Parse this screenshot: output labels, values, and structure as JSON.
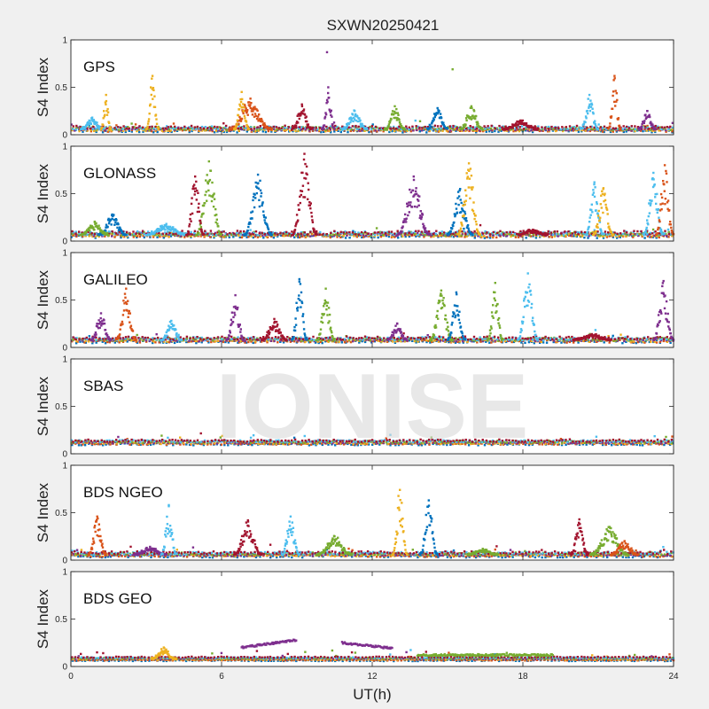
{
  "chart_data": {
    "type": "scatter",
    "title": "SXWN20250421",
    "xlabel": "UT(h)",
    "ylabel": "S4 Index",
    "xlim": [
      0,
      24
    ],
    "ylim": [
      0,
      1
    ],
    "xticks": [
      0,
      6,
      12,
      18,
      24
    ],
    "yticks": [
      0,
      0.5,
      1
    ],
    "grid": false,
    "watermark": "IONISE",
    "colors": [
      "#0072BD",
      "#D95319",
      "#EDB120",
      "#7E2F8E",
      "#77AC30",
      "#4DBEEE",
      "#A2142F"
    ],
    "panels": [
      {
        "name": "GPS",
        "baseline": 0.06,
        "noise": 0.035,
        "bumps": [
          {
            "color": 5,
            "x": [
              0.4,
              1.3
            ],
            "peak": 0.18
          },
          {
            "color": 2,
            "x": [
              1.2,
              1.6
            ],
            "peak": 0.42
          },
          {
            "color": 2,
            "x": [
              3.0,
              3.5
            ],
            "peak": 0.62
          },
          {
            "color": 1,
            "x": [
              6.3,
              8.0
            ],
            "peak": 0.38
          },
          {
            "color": 2,
            "x": [
              6.5,
              7.1
            ],
            "peak": 0.45
          },
          {
            "color": 6,
            "x": [
              8.8,
              9.6
            ],
            "peak": 0.32
          },
          {
            "color": 3,
            "x": [
              10.0,
              10.5
            ],
            "peak": 0.5
          },
          {
            "color": 5,
            "x": [
              10.8,
              11.8
            ],
            "peak": 0.25
          },
          {
            "color": 4,
            "x": [
              12.5,
              13.3
            ],
            "peak": 0.3
          },
          {
            "color": 0,
            "x": [
              14.2,
              15.0
            ],
            "peak": 0.28
          },
          {
            "color": 4,
            "x": [
              15.5,
              16.4
            ],
            "peak": 0.3
          },
          {
            "color": 6,
            "x": [
              17.2,
              18.6
            ],
            "peak": 0.15
          },
          {
            "color": 5,
            "x": [
              20.3,
              21.0
            ],
            "peak": 0.42
          },
          {
            "color": 1,
            "x": [
              21.4,
              21.9
            ],
            "peak": 0.62
          },
          {
            "color": 3,
            "x": [
              22.6,
              23.3
            ],
            "peak": 0.25
          }
        ],
        "outliers": [
          {
            "x": 10.2,
            "y": 0.87,
            "color": 3
          },
          {
            "x": 15.2,
            "y": 0.69,
            "color": 4
          }
        ]
      },
      {
        "name": "GLONASS",
        "baseline": 0.07,
        "noise": 0.04,
        "bumps": [
          {
            "color": 0,
            "x": [
              1.1,
              2.2
            ],
            "peak": 0.28
          },
          {
            "color": 4,
            "x": [
              0.4,
              1.5
            ],
            "peak": 0.2
          },
          {
            "color": 5,
            "x": [
              3.0,
              4.6
            ],
            "peak": 0.18
          },
          {
            "color": 4,
            "x": [
              5.0,
              6.0
            ],
            "peak": 0.84
          },
          {
            "color": 6,
            "x": [
              4.6,
              5.3
            ],
            "peak": 0.68
          },
          {
            "color": 0,
            "x": [
              6.9,
              8.0
            ],
            "peak": 0.7
          },
          {
            "color": 6,
            "x": [
              8.8,
              9.8
            ],
            "peak": 0.92
          },
          {
            "color": 3,
            "x": [
              13.0,
              14.3
            ],
            "peak": 0.68
          },
          {
            "color": 0,
            "x": [
              15.0,
              16.0
            ],
            "peak": 0.55
          },
          {
            "color": 2,
            "x": [
              15.4,
              16.3
            ],
            "peak": 0.82
          },
          {
            "color": 6,
            "x": [
              17.8,
              19.0
            ],
            "peak": 0.12
          },
          {
            "color": 5,
            "x": [
              20.5,
              21.2
            ],
            "peak": 0.62
          },
          {
            "color": 2,
            "x": [
              20.8,
              21.6
            ],
            "peak": 0.55
          },
          {
            "color": 5,
            "x": [
              22.8,
              23.6
            ],
            "peak": 0.72
          },
          {
            "color": 1,
            "x": [
              23.3,
              24.0
            ],
            "peak": 0.8
          }
        ],
        "outliers": []
      },
      {
        "name": "GALILEO",
        "baseline": 0.08,
        "noise": 0.035,
        "bumps": [
          {
            "color": 3,
            "x": [
              0.8,
              1.6
            ],
            "peak": 0.36
          },
          {
            "color": 1,
            "x": [
              1.8,
              2.6
            ],
            "peak": 0.62
          },
          {
            "color": 5,
            "x": [
              3.6,
              4.4
            ],
            "peak": 0.28
          },
          {
            "color": 3,
            "x": [
              6.2,
              6.9
            ],
            "peak": 0.55
          },
          {
            "color": 6,
            "x": [
              7.6,
              8.6
            ],
            "peak": 0.3
          },
          {
            "color": 0,
            "x": [
              8.8,
              9.4
            ],
            "peak": 0.72
          },
          {
            "color": 4,
            "x": [
              9.8,
              10.5
            ],
            "peak": 0.62
          },
          {
            "color": 3,
            "x": [
              12.6,
              13.4
            ],
            "peak": 0.25
          },
          {
            "color": 4,
            "x": [
              14.3,
              15.2
            ],
            "peak": 0.6
          },
          {
            "color": 0,
            "x": [
              15.0,
              15.7
            ],
            "peak": 0.58
          },
          {
            "color": 4,
            "x": [
              16.6,
              17.2
            ],
            "peak": 0.68
          },
          {
            "color": 5,
            "x": [
              17.8,
              18.6
            ],
            "peak": 0.78
          },
          {
            "color": 6,
            "x": [
              20.0,
              21.5
            ],
            "peak": 0.14
          },
          {
            "color": 3,
            "x": [
              23.2,
              24.0
            ],
            "peak": 0.7
          }
        ],
        "outliers": []
      },
      {
        "name": "SBAS",
        "baseline": 0.12,
        "noise": 0.025,
        "bumps": [],
        "outliers": []
      },
      {
        "name": "BDS NGEO",
        "baseline": 0.06,
        "noise": 0.03,
        "bumps": [
          {
            "color": 1,
            "x": [
              0.7,
              1.4
            ],
            "peak": 0.46
          },
          {
            "color": 3,
            "x": [
              2.5,
              3.8
            ],
            "peak": 0.14
          },
          {
            "color": 5,
            "x": [
              3.6,
              4.2
            ],
            "peak": 0.58
          },
          {
            "color": 6,
            "x": [
              6.5,
              7.6
            ],
            "peak": 0.42
          },
          {
            "color": 5,
            "x": [
              8.4,
              9.1
            ],
            "peak": 0.46
          },
          {
            "color": 4,
            "x": [
              9.8,
              11.2
            ],
            "peak": 0.25
          },
          {
            "color": 2,
            "x": [
              12.8,
              13.4
            ],
            "peak": 0.74
          },
          {
            "color": 0,
            "x": [
              13.9,
              14.6
            ],
            "peak": 0.63
          },
          {
            "color": 4,
            "x": [
              15.8,
              17.0
            ],
            "peak": 0.12
          },
          {
            "color": 6,
            "x": [
              19.9,
              20.6
            ],
            "peak": 0.43
          },
          {
            "color": 4,
            "x": [
              20.7,
              22.2
            ],
            "peak": 0.35
          },
          {
            "color": 1,
            "x": [
              21.5,
              22.6
            ],
            "peak": 0.2
          }
        ],
        "outliers": []
      },
      {
        "name": "BDS GEO",
        "baseline": 0.08,
        "noise": 0.012,
        "bumps": [
          {
            "color": 2,
            "x": [
              3.2,
              4.2
            ],
            "peak": 0.2
          }
        ],
        "outliers": [],
        "arcs": [
          {
            "color": 3,
            "x": [
              6.8,
              9.0
            ],
            "y": [
              0.2,
              0.28
            ]
          },
          {
            "color": 3,
            "x": [
              10.8,
              12.8
            ],
            "y": [
              0.25,
              0.19
            ]
          },
          {
            "color": 4,
            "x": [
              13.8,
              19.2
            ],
            "y": [
              0.12,
              0.12
            ]
          }
        ]
      }
    ]
  }
}
